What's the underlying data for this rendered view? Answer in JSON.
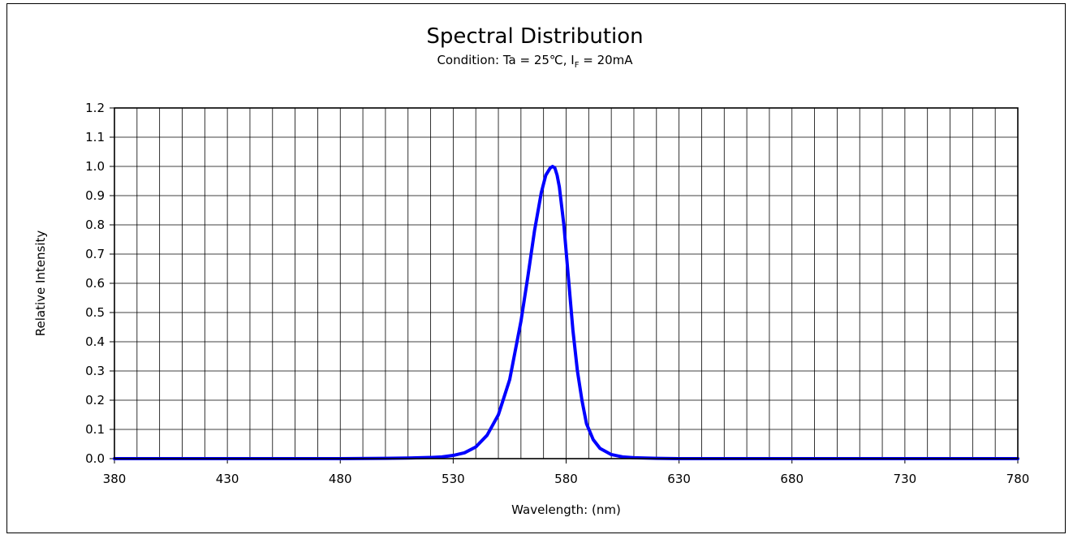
{
  "chart_data": {
    "type": "line",
    "title": "Spectral Distribution",
    "subtitle": {
      "prefix": "Condition: Ta = 25℃, I",
      "subscript": "F",
      "suffix": " = 20mA"
    },
    "xlabel": "Wavelength: (nm)",
    "ylabel": "Relative Intensity",
    "xlim": [
      380,
      780
    ],
    "ylim": [
      0,
      1.2
    ],
    "x_ticks": [
      380,
      430,
      480,
      530,
      580,
      630,
      680,
      730,
      780
    ],
    "x_tick_labels": [
      "380",
      "430",
      "480",
      "530",
      "580",
      "630",
      "680",
      "730",
      "780"
    ],
    "y_ticks": [
      0.0,
      0.1,
      0.2,
      0.3,
      0.4,
      0.5,
      0.6,
      0.7,
      0.8,
      0.9,
      1.0,
      1.1,
      1.2
    ],
    "y_tick_labels": [
      "0.0",
      "0.1",
      "0.2",
      "0.3",
      "0.4",
      "0.5",
      "0.6",
      "0.7",
      "0.8",
      "0.9",
      "1.0",
      "1.1",
      "1.2"
    ],
    "grid": true,
    "grid_x_step": 10,
    "grid_y_step": 0.1,
    "legend": "none",
    "series": [
      {
        "color": "#0000ff",
        "x": [
          380,
          400,
          420,
          440,
          460,
          480,
          500,
          510,
          520,
          525,
          530,
          535,
          540,
          545,
          550,
          555,
          560,
          563,
          566,
          569,
          571,
          573,
          574,
          575,
          576,
          577,
          579,
          581,
          583,
          585,
          587,
          589,
          592,
          595,
          600,
          605,
          610,
          620,
          630,
          650,
          680,
          700,
          730,
          760,
          780
        ],
        "y": [
          0.0,
          0.0,
          0.0,
          0.0,
          0.0,
          0.0,
          0.001,
          0.002,
          0.004,
          0.006,
          0.011,
          0.02,
          0.04,
          0.08,
          0.15,
          0.27,
          0.47,
          0.62,
          0.78,
          0.91,
          0.97,
          0.995,
          1.0,
          0.995,
          0.97,
          0.93,
          0.8,
          0.62,
          0.44,
          0.3,
          0.2,
          0.12,
          0.065,
          0.035,
          0.014,
          0.006,
          0.003,
          0.001,
          0.0,
          0.0,
          0.0,
          0.0,
          0.0,
          0.0,
          0.0
        ]
      }
    ]
  }
}
